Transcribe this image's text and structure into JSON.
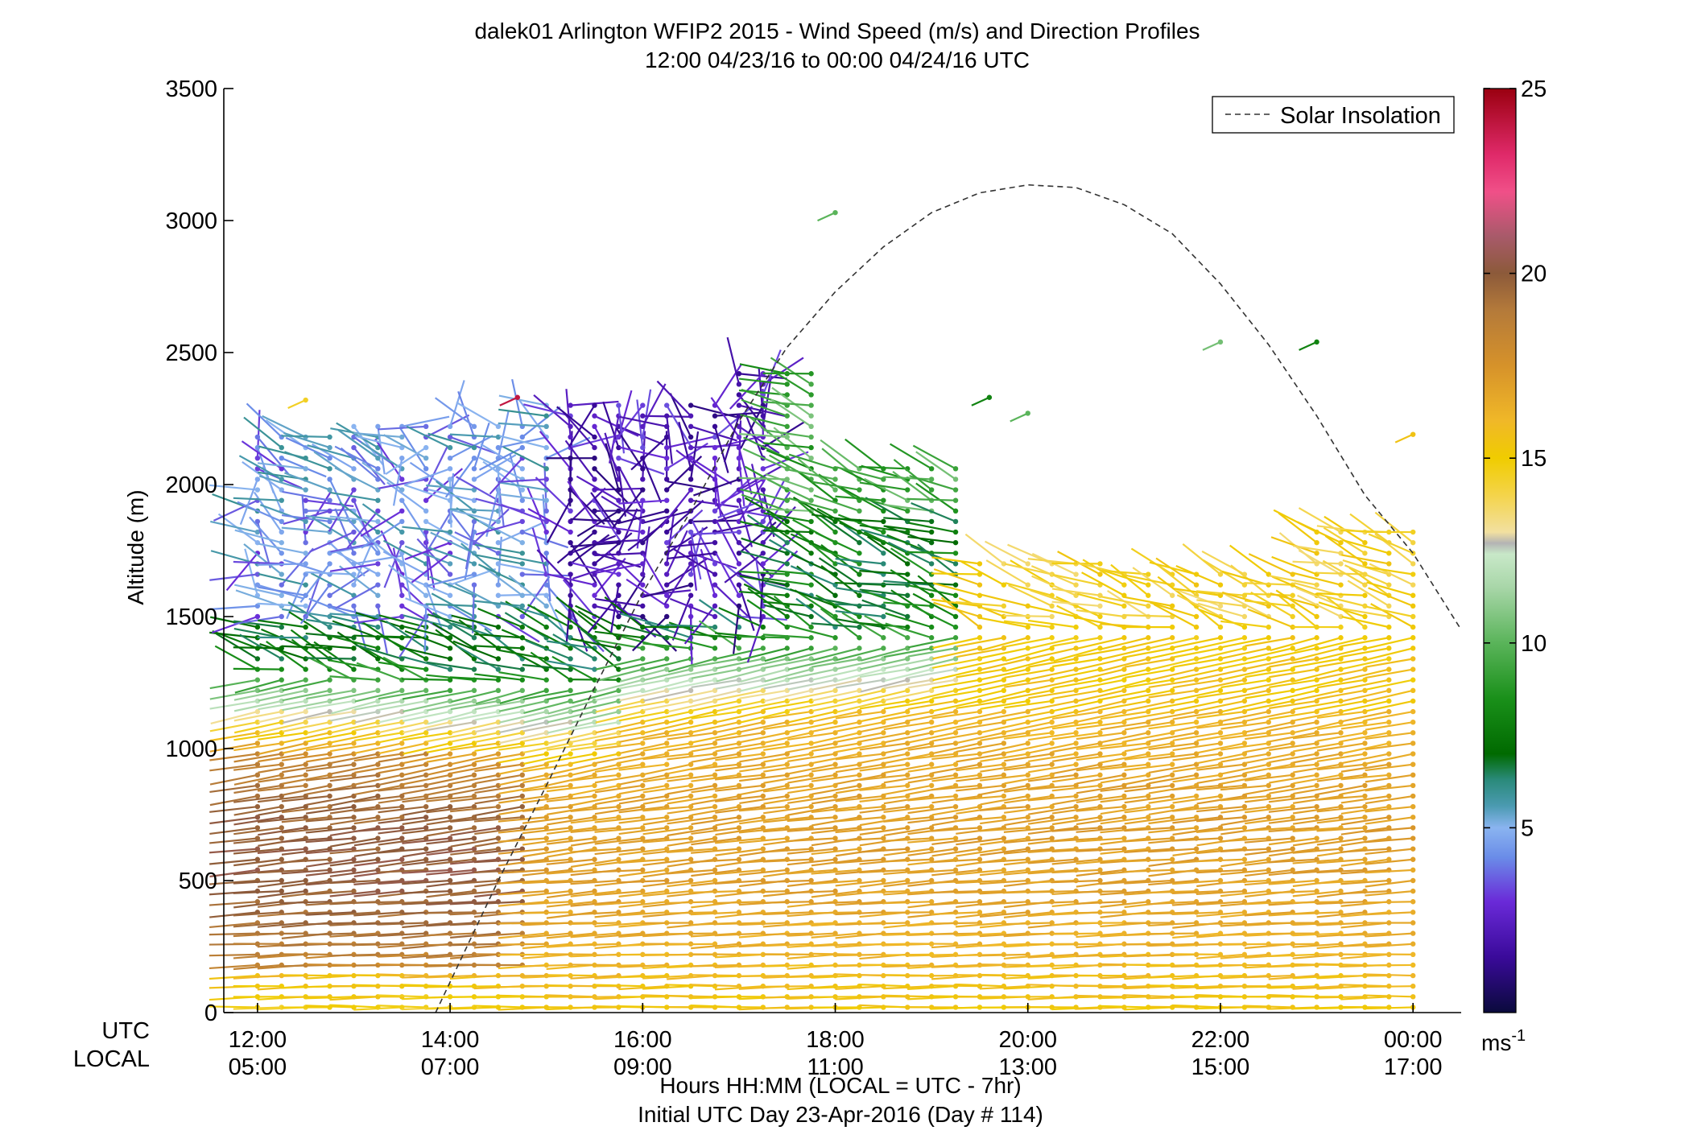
{
  "chart_data": {
    "type": "wind-barb-profile",
    "title": "dalek01 Arlington WFIP2 2015 - Wind Speed (m/s) and Direction Profiles",
    "subtitle": "12:00 04/23/16 to 00:00 04/24/16  UTC",
    "ylabel": "Altitude (m)",
    "ylim": [
      0,
      3500
    ],
    "y_ticks": [
      "0",
      "500",
      "1000",
      "1500",
      "2000",
      "2500",
      "3000",
      "3500"
    ],
    "y_tick_values": [
      0,
      500,
      1000,
      1500,
      2000,
      2500,
      3000,
      3500
    ],
    "xlim_hours_utc": [
      11.65,
      24.5
    ],
    "x_tick_hours_utc": [
      12,
      14,
      16,
      18,
      20,
      22,
      24
    ],
    "x_row_label_utc": "UTC",
    "x_row_label_local": "LOCAL",
    "x_ticks_utc": [
      "12:00",
      "14:00",
      "16:00",
      "18:00",
      "20:00",
      "22:00",
      "00:00"
    ],
    "x_ticks_local": [
      "05:00",
      "07:00",
      "09:00",
      "11:00",
      "13:00",
      "15:00",
      "17:00"
    ],
    "xlabel": "Hours HH:MM  (LOCAL = UTC - 7hr)",
    "xlabel2": "Initial UTC Day 23-Apr-2016 (Day # 114)",
    "legend": {
      "position": "top-right",
      "entry": "Solar Insolation",
      "style": "dashed"
    },
    "colorbar": {
      "range": [
        0,
        25
      ],
      "ticks": [
        "5",
        "10",
        "15",
        "20",
        "25"
      ],
      "tick_values": [
        5,
        10,
        15,
        20,
        25
      ],
      "unit_base": "ms",
      "unit_exp": "-1",
      "stops": [
        {
          "v": 0,
          "c": "#0a0a3c"
        },
        {
          "v": 1.5,
          "c": "#3a0a9a"
        },
        {
          "v": 3,
          "c": "#6a2ad8"
        },
        {
          "v": 4.2,
          "c": "#6a8ce8"
        },
        {
          "v": 5,
          "c": "#8ab4f0"
        },
        {
          "v": 5.6,
          "c": "#4a9ab0"
        },
        {
          "v": 6.3,
          "c": "#2a8a7a"
        },
        {
          "v": 7,
          "c": "#006a00"
        },
        {
          "v": 8.5,
          "c": "#1a901a"
        },
        {
          "v": 10,
          "c": "#5ab45a"
        },
        {
          "v": 11.5,
          "c": "#a8d6a8"
        },
        {
          "v": 12.4,
          "c": "#c8e8c8"
        },
        {
          "v": 12.7,
          "c": "#b4b4b4"
        },
        {
          "v": 13.0,
          "c": "#f2e0a0"
        },
        {
          "v": 14,
          "c": "#f4d44a"
        },
        {
          "v": 15,
          "c": "#f0cc00"
        },
        {
          "v": 16,
          "c": "#f0b828"
        },
        {
          "v": 17.5,
          "c": "#d6922a"
        },
        {
          "v": 19,
          "c": "#b47a3a"
        },
        {
          "v": 20,
          "c": "#8c5a3a"
        },
        {
          "v": 21,
          "c": "#a85a6a"
        },
        {
          "v": 22.2,
          "c": "#f05088"
        },
        {
          "v": 23.2,
          "c": "#e02a6a"
        },
        {
          "v": 25,
          "c": "#9a0010"
        }
      ]
    },
    "solar_insolation_curve": {
      "hours_utc": [
        13.85,
        14.5,
        15.0,
        15.5,
        16.0,
        16.5,
        17.0,
        17.5,
        18.0,
        18.5,
        19.0,
        19.5,
        20.0,
        20.5,
        21.0,
        21.5,
        22.0,
        22.5,
        23.0,
        23.5,
        24.0,
        24.5
      ],
      "altitude_m": [
        0,
        500,
        860,
        1230,
        1590,
        1900,
        2240,
        2520,
        2730,
        2900,
        3030,
        3105,
        3135,
        3125,
        3060,
        2950,
        2760,
        2530,
        2260,
        1960,
        1740,
        1450
      ]
    },
    "wind_field": {
      "time_range_hours_utc": [
        12.0,
        24.0
      ],
      "time_step_hours": 0.25,
      "altitude_step_m": 40,
      "lower_layer_speed_ms": {
        "12:00-15:00": [
          18,
          20
        ],
        "15:00-24:00": [
          15,
          17
        ]
      },
      "upper_layer_speed_ms": {
        "12:00-17:00": [
          2,
          4
        ],
        "17:00-19:30": [
          7,
          9
        ],
        "19:30-24:00": [
          14,
          16
        ]
      },
      "dominant_direction": "westerly"
    }
  }
}
